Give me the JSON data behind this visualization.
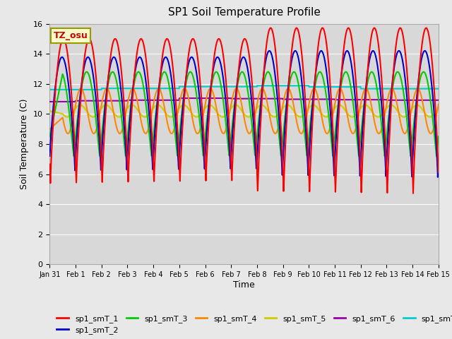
{
  "title": "SP1 Soil Temperature Profile",
  "xlabel": "Time",
  "ylabel": "Soil Temperature (C)",
  "xlim": [
    0,
    15
  ],
  "ylim": [
    0,
    16
  ],
  "yticks": [
    0,
    2,
    4,
    6,
    8,
    10,
    12,
    14,
    16
  ],
  "xtick_labels": [
    "Jan 31",
    "Feb 1",
    "Feb 2",
    "Feb 3",
    "Feb 4",
    "Feb 5",
    "Feb 6",
    "Feb 7",
    "Feb 8",
    "Feb 9",
    "Feb 10",
    "Feb 11",
    "Feb 12",
    "Feb 13",
    "Feb 14",
    "Feb 15"
  ],
  "annotation_text": "TZ_osu",
  "annotation_color": "#cc0000",
  "annotation_bg": "#ffffcc",
  "annotation_border": "#999900",
  "series_colors": {
    "sp1_smT_1": "#ff0000",
    "sp1_smT_2": "#0000cc",
    "sp1_smT_3": "#00cc00",
    "sp1_smT_4": "#ff8800",
    "sp1_smT_5": "#cccc00",
    "sp1_smT_6": "#9900aa",
    "sp1_smT_7": "#00cccc"
  },
  "background_color": "#d8d8d8",
  "fig_bg": "#e8e8e8",
  "grid_color": "#ffffff",
  "linewidth": 1.5
}
